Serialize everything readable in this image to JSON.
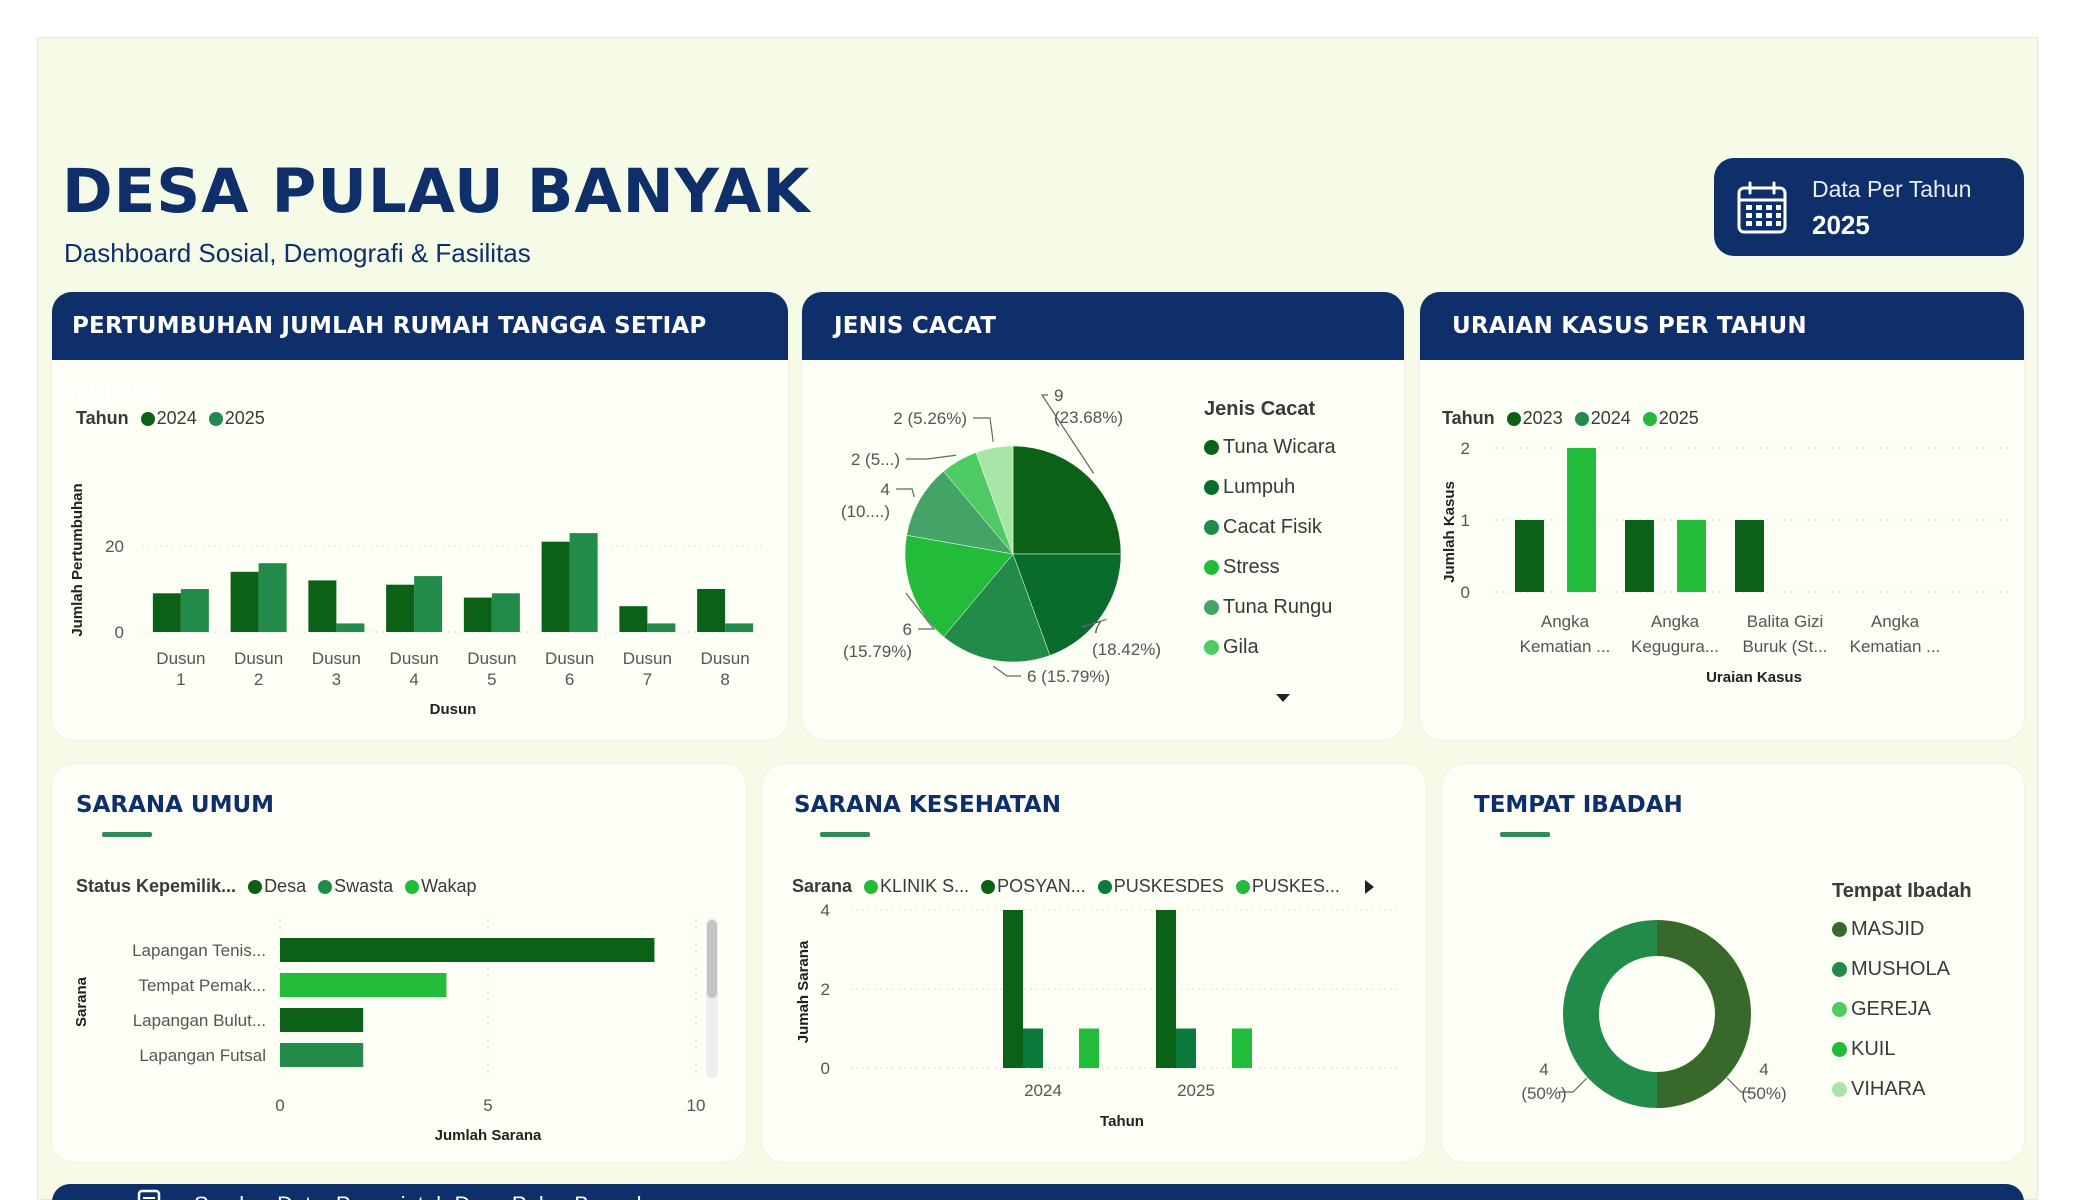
{
  "header": {
    "title": "DESA PULAU BANYAK",
    "subtitle": "Dashboard Sosial, Demografi & Fasilitas",
    "badge_label": "Data Per Tahun",
    "badge_value": "2025",
    "badge_icon": "calendar-icon"
  },
  "colors": {
    "navy": "#0f2f6b",
    "dark_green": "#0b6115",
    "mid_green": "#228b4a",
    "bright_green": "#22bb3a",
    "light_green": "#a8e6a8",
    "background": "#f5fbe6"
  },
  "rumah_tangga": {
    "title": "PERTUMBUHAN JUMLAH RUMAH TANGGA SETIAP TAHUN",
    "legend_title": "Tahun",
    "chart_data": {
      "type": "bar",
      "categories": [
        "Dusun 1",
        "Dusun 2",
        "Dusun 3",
        "Dusun 4",
        "Dusun 5",
        "Dusun 6",
        "Dusun 7",
        "Dusun 8"
      ],
      "category_lines": [
        [
          "Dusun",
          "1"
        ],
        [
          "Dusun",
          "2"
        ],
        [
          "Dusun",
          "3"
        ],
        [
          "Dusun",
          "4"
        ],
        [
          "Dusun",
          "5"
        ],
        [
          "Dusun",
          "6"
        ],
        [
          "Dusun",
          "7"
        ],
        [
          "Dusun",
          "8"
        ]
      ],
      "series": [
        {
          "name": "2024",
          "color": "#0b6115",
          "values": [
            9,
            14,
            12,
            11,
            8,
            21,
            6,
            10
          ]
        },
        {
          "name": "2025",
          "color": "#228b4a",
          "values": [
            10,
            16,
            2,
            13,
            9,
            23,
            2,
            2
          ]
        }
      ],
      "xlabel": "Dusun",
      "ylabel": "Jumlah Pertumbuhan",
      "yticks": [
        0,
        20
      ],
      "ylim": [
        0,
        25
      ],
      "grid": true,
      "legend": "top-left"
    }
  },
  "jenis_cacat": {
    "title": "JENIS CACAT",
    "legend_title": "Jenis Cacat",
    "chart_data": {
      "type": "pie",
      "slices": [
        {
          "name": "Tuna Wicara",
          "value": 9,
          "label": [
            "9",
            "(23.68%)"
          ],
          "color": "#0b6115"
        },
        {
          "name": "Lumpuh",
          "value": 7,
          "label": [
            "7",
            "(18.42%)"
          ],
          "color": "#096b2e"
        },
        {
          "name": "Cacat Fisik",
          "value": 6,
          "label": [
            "6 (15.79%)"
          ],
          "color": "#228b4a"
        },
        {
          "name": "Stress",
          "value": 6,
          "label": [
            "6",
            "(15.79%)"
          ],
          "color": "#22bb3a"
        },
        {
          "name": "Tuna Rungu",
          "value": 4,
          "label": [
            "4",
            "(10....)"
          ],
          "color": "#44a468"
        },
        {
          "name": "Gila",
          "value": 2,
          "label": [
            "2 (5...)"
          ],
          "color": "#4ecb63"
        },
        {
          "name": "",
          "value": 2,
          "label": [
            "2 (5.26%)"
          ],
          "color": "#a8e6a8"
        }
      ],
      "legend": "right"
    }
  },
  "uraian_kasus": {
    "title": "URAIAN KASUS PER TAHUN",
    "legend_title": "Tahun",
    "chart_data": {
      "type": "bar",
      "categories": [
        "Angka Kematian ...",
        "Angka Keguguran...",
        "Balita Gizi Buruk (St...",
        "Angka Kematian ..."
      ],
      "category_lines": [
        [
          "Angka",
          "Kematian ..."
        ],
        [
          "Angka",
          "Kegugura..."
        ],
        [
          "Balita Gizi",
          "Buruk (St..."
        ],
        [
          "Angka",
          "Kematian ..."
        ]
      ],
      "series": [
        {
          "name": "2023",
          "color": "#0b6115",
          "values": [
            1,
            1,
            1,
            0
          ]
        },
        {
          "name": "2024",
          "color": "#228b4a",
          "values": [
            0,
            0,
            0,
            0
          ]
        },
        {
          "name": "2025",
          "color": "#22bb3a",
          "values": [
            2,
            1,
            0,
            0
          ]
        }
      ],
      "xlabel": "Uraian Kasus",
      "ylabel": "Jumlah Kasus",
      "yticks": [
        0,
        1,
        2
      ],
      "ylim": [
        0,
        2
      ],
      "grid": true,
      "legend": "top-left"
    }
  },
  "sarana_umum": {
    "title": "SARANA UMUM",
    "legend_title": "Status Kepemilik...",
    "chart_data": {
      "type": "bar",
      "orientation": "horizontal",
      "categories": [
        "Lapangan Tenis...",
        "Tempat Pemak...",
        "Lapangan Bulut...",
        "Lapangan Futsal"
      ],
      "series": [
        {
          "name": "Desa",
          "color": "#0b6115"
        },
        {
          "name": "Swasta",
          "color": "#228b4a"
        },
        {
          "name": "Wakap",
          "color": "#22bb3a"
        }
      ],
      "bars": [
        {
          "category": "Lapangan Tenis...",
          "value": 9,
          "series": "Desa"
        },
        {
          "category": "Tempat Pemak...",
          "value": 4,
          "series": "Wakap"
        },
        {
          "category": "Lapangan Bulut...",
          "value": 2,
          "series": "Desa"
        },
        {
          "category": "Lapangan Futsal",
          "value": 2,
          "series": "Swasta"
        }
      ],
      "xlabel": "Jumlah Sarana",
      "ylabel": "Sarana",
      "xticks": [
        0,
        5,
        10
      ],
      "xlim": [
        0,
        10
      ],
      "grid": true,
      "legend": "top-left"
    }
  },
  "sarana_kesehatan": {
    "title": "SARANA KESEHATAN",
    "legend_title": "Sarana",
    "chart_data": {
      "type": "bar",
      "categories": [
        "2024",
        "2025"
      ],
      "series": [
        {
          "name": "KLINIK S...",
          "color": "#22bb3a",
          "values": [
            1,
            1
          ]
        },
        {
          "name": "POSYAN...",
          "color": "#0b6115",
          "values": [
            4,
            4
          ]
        },
        {
          "name": "PUSKESDES",
          "color": "#0a7a3a",
          "values": [
            1,
            1
          ]
        },
        {
          "name": "PUSKES...",
          "color": "#22bb3a",
          "values": [
            1,
            1
          ]
        }
      ],
      "xlabel": "Tahun",
      "ylabel": "Jumah Sarana",
      "yticks": [
        0,
        2,
        4
      ],
      "ylim": [
        0,
        4
      ],
      "grid": true,
      "legend": "top-left"
    }
  },
  "tempat_ibadah": {
    "title": "TEMPAT IBADAH",
    "legend_title": "Tempat Ibadah",
    "chart_data": {
      "type": "pie",
      "donut": true,
      "slices": [
        {
          "name": "MASJID",
          "value": 4,
          "label": [
            "4",
            "(50%)"
          ],
          "color": "#38692a"
        },
        {
          "name": "MUSHOLA",
          "value": 4,
          "label": [
            "4",
            "(50%)"
          ],
          "color": "#228b4a"
        }
      ],
      "legend_items": [
        {
          "name": "MASJID",
          "color": "#38692a"
        },
        {
          "name": "MUSHOLA",
          "color": "#228b4a"
        },
        {
          "name": "GEREJA",
          "color": "#4ecb63"
        },
        {
          "name": "KUIL",
          "color": "#22bb3a"
        },
        {
          "name": "VIHARA",
          "color": "#a8e6a8"
        }
      ],
      "legend": "right"
    }
  },
  "footer": {
    "text": "Sumber Data: Pemerintah Desa Pulau Banyak"
  }
}
